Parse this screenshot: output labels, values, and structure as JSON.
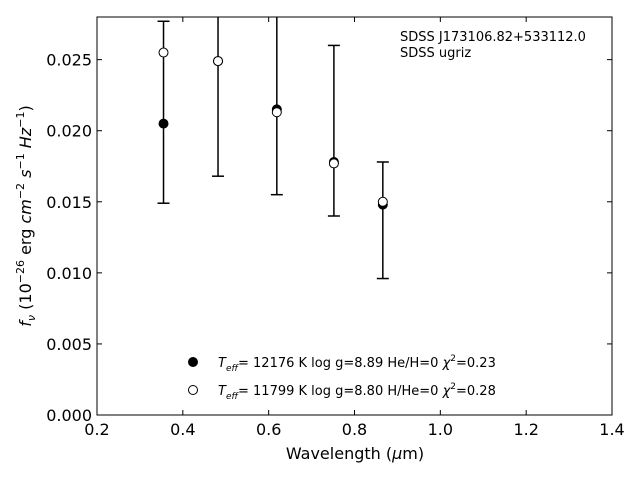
{
  "chart_data": {
    "type": "scatter",
    "xlabel": "Wavelength (μm)",
    "ylabel": "f_ν (10^-26 erg cm^-2 s^-1 Hz^-1)",
    "xlim": [
      0.2,
      1.4
    ],
    "ylim": [
      0.0,
      0.028
    ],
    "x_ticks": [
      "0.2",
      "0.4",
      "0.6",
      "0.8",
      "1.0",
      "1.2",
      "1.4"
    ],
    "y_ticks": [
      "0.000",
      "0.005",
      "0.010",
      "0.015",
      "0.020",
      "0.025"
    ],
    "grid": false,
    "legend_position": "lower-center",
    "annotations": [
      "SDSS J173106.82+533112.0",
      "SDSS ugriz"
    ],
    "observed": {
      "x": [
        0.355,
        0.482,
        0.619,
        0.752,
        0.866
      ],
      "y_low": [
        0.0149,
        0.0168,
        0.0155,
        0.014,
        0.0096
      ],
      "y_high": [
        0.0277,
        0.0285,
        0.0285,
        0.026,
        0.0178
      ]
    },
    "series": [
      {
        "name": "T_eff= 12176 K  log g=8.89  He/H=0  χ²=0.23",
        "marker": "filled",
        "x": [
          0.355,
          0.482,
          0.619,
          0.752,
          0.866
        ],
        "y": [
          0.0205,
          0.0249,
          0.0215,
          0.0178,
          0.0148
        ]
      },
      {
        "name": "T_eff= 11799 K  log g=8.80  H/He=0  χ²=0.28",
        "marker": "open",
        "x": [
          0.355,
          0.482,
          0.619,
          0.752,
          0.866
        ],
        "y": [
          0.0255,
          0.0249,
          0.0213,
          0.0177,
          0.015
        ]
      }
    ]
  }
}
